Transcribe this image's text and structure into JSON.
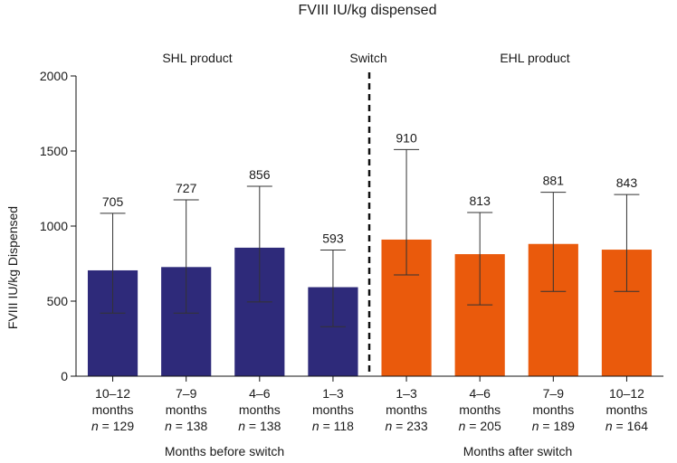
{
  "chart_data": {
    "type": "bar",
    "title": "FVIII IU/kg dispensed",
    "ylabel": "FVIII IU/kg Dispensed",
    "ylim": [
      0,
      2000
    ],
    "yticks": [
      0,
      500,
      1000,
      1500,
      2000
    ],
    "grid": false,
    "group_labels": {
      "before": "SHL product",
      "switch": "Switch",
      "after": "EHL product"
    },
    "xlabels": {
      "before": "Months before switch",
      "after": "Months after switch"
    },
    "colors": {
      "before": "#2e2a7a",
      "after": "#ea5a0c"
    },
    "categories": [
      {
        "period": "10–12",
        "unit": "months",
        "n_label": "n",
        "n_value": "= 129",
        "value": 705,
        "err_low": 420,
        "err_high": 1085,
        "group": "before"
      },
      {
        "period": "7–9",
        "unit": "months",
        "n_label": "n",
        "n_value": "= 138",
        "value": 727,
        "err_low": 420,
        "err_high": 1175,
        "group": "before"
      },
      {
        "period": "4–6",
        "unit": "months",
        "n_label": "n",
        "n_value": "= 138",
        "value": 856,
        "err_low": 495,
        "err_high": 1265,
        "group": "before"
      },
      {
        "period": "1–3",
        "unit": "months",
        "n_label": "n",
        "n_value": "= 118",
        "value": 593,
        "err_low": 330,
        "err_high": 840,
        "group": "before"
      },
      {
        "period": "1–3",
        "unit": "months",
        "n_label": "n",
        "n_value": "= 233",
        "value": 910,
        "err_low": 675,
        "err_high": 1510,
        "group": "after"
      },
      {
        "period": "4–6",
        "unit": "months",
        "n_label": "n",
        "n_value": "= 205",
        "value": 813,
        "err_low": 475,
        "err_high": 1090,
        "group": "after"
      },
      {
        "period": "7–9",
        "unit": "months",
        "n_label": "n",
        "n_value": "= 189",
        "value": 881,
        "err_low": 565,
        "err_high": 1225,
        "group": "after"
      },
      {
        "period": "10–12",
        "unit": "months",
        "n_label": "n",
        "n_value": "= 164",
        "value": 843,
        "err_low": 565,
        "err_high": 1210,
        "group": "after"
      }
    ]
  }
}
